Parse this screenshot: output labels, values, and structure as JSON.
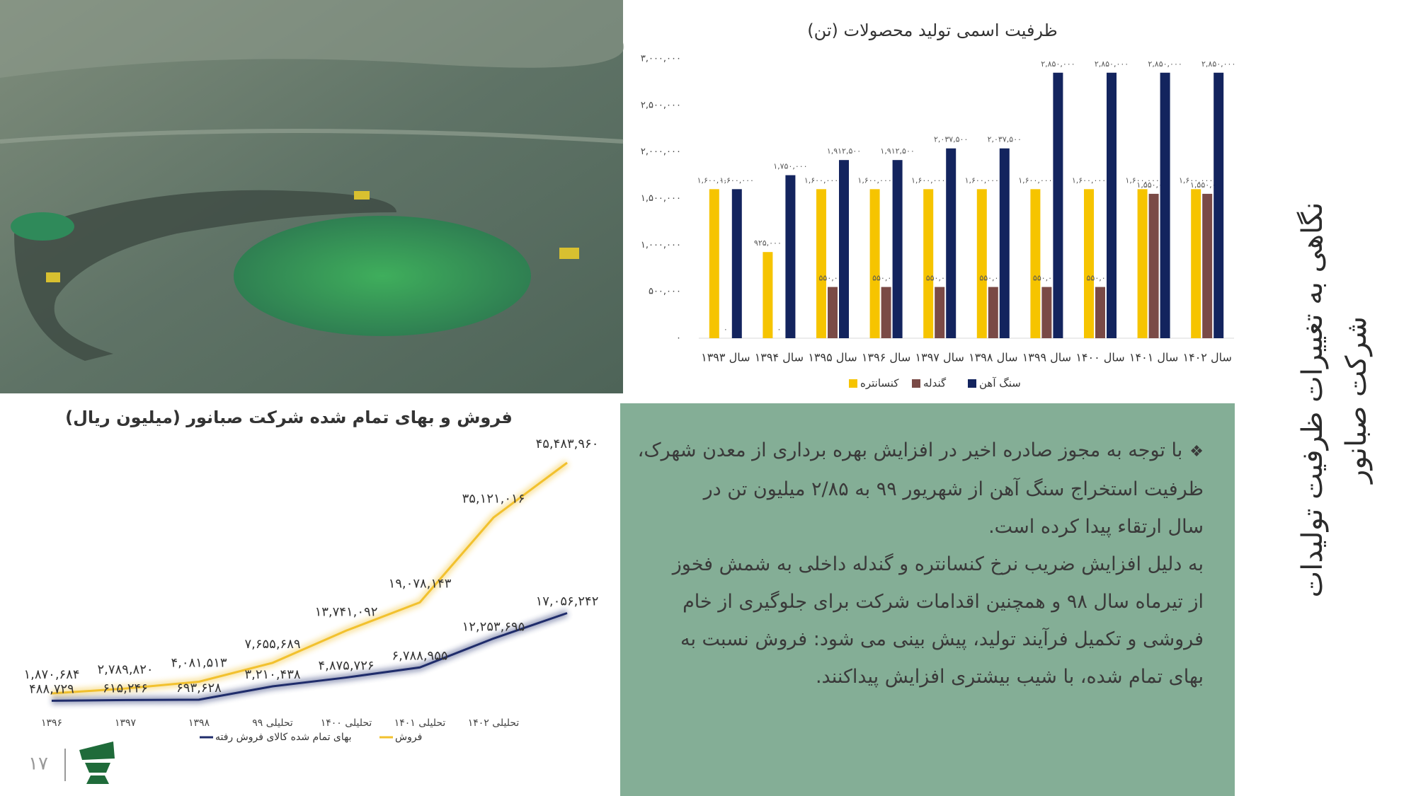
{
  "chart_data": [
    {
      "type": "bar",
      "title": "ظرفیت اسمی تولید محصولات (تن)",
      "categories": [
        "سال ۱۳۹۳",
        "سال ۱۳۹۴",
        "سال ۱۳۹۵",
        "سال ۱۳۹۶",
        "سال ۱۳۹۷",
        "سال ۱۳۹۸",
        "سال ۱۳۹۹",
        "سال ۱۴۰۰",
        "سال ۱۴۰۱",
        "سال ۱۴۰۲"
      ],
      "series": [
        {
          "name": "کنسانتره",
          "color": "#f6c400",
          "values": [
            1600000,
            925000,
            1600000,
            1600000,
            1600000,
            1600000,
            1600000,
            1600000,
            1600000,
            1600000
          ],
          "value_labels": [
            "۱,۶۰۰,۰۰۰",
            "۹۲۵,۰۰۰",
            "۱,۶۰۰,۰۰۰",
            "۱,۶۰۰,۰۰۰",
            "۱,۶۰۰,۰۰۰",
            "۱,۶۰۰,۰۰۰",
            "۱,۶۰۰,۰۰۰",
            "۱,۶۰۰,۰۰۰",
            "۱,۶۰۰,۰۰۰",
            "۱,۶۰۰,۰۰۰"
          ]
        },
        {
          "name": "گندله",
          "color": "#7a4a46",
          "values": [
            0,
            0,
            550000,
            550000,
            550000,
            550000,
            550000,
            550000,
            1550000,
            1550000
          ],
          "value_labels": [
            "۰",
            "۰",
            "۵۵۰,۰۰۰",
            "۵۵۰,۰۰۰",
            "۵۵۰,۰۰۰",
            "۵۵۰,۰۰۰",
            "۵۵۰,۰۰۰",
            "۵۵۰,۰۰۰",
            "۱,۵۵۰,۰۰۰",
            "۱,۵۵۰,۰۰۰"
          ]
        },
        {
          "name": "سنگ آهن",
          "color": "#13245e",
          "values": [
            1600000,
            1750000,
            1912500,
            1912500,
            2037500,
            2037500,
            2850000,
            2850000,
            2850000,
            2850000
          ],
          "value_labels": [
            "۱,۶۰۰,۰۰۰",
            "۱,۷۵۰,۰۰۰",
            "۱,۹۱۲,۵۰۰",
            "۱,۹۱۲,۵۰۰",
            "۲,۰۳۷,۵۰۰",
            "۲,۰۳۷,۵۰۰",
            "۲,۸۵۰,۰۰۰",
            "۲,۸۵۰,۰۰۰",
            "۲,۸۵۰,۰۰۰",
            "۲,۸۵۰,۰۰۰"
          ]
        }
      ],
      "ylim": [
        0,
        3000000
      ],
      "yticks": [
        {
          "value": 0,
          "label": "۰"
        },
        {
          "value": 500000,
          "label": "۵۰۰,۰۰۰"
        },
        {
          "value": 1000000,
          "label": "۱,۰۰۰,۰۰۰"
        },
        {
          "value": 1500000,
          "label": "۱,۵۰۰,۰۰۰"
        },
        {
          "value": 2000000,
          "label": "۲,۰۰۰,۰۰۰"
        },
        {
          "value": 2500000,
          "label": "۲,۵۰۰,۰۰۰"
        },
        {
          "value": 3000000,
          "label": "۳,۰۰۰,۰۰۰"
        }
      ],
      "legend": "bottom"
    },
    {
      "type": "line",
      "title": "فروش و بهای تمام شده شرکت صبانور (میلیون ریال)",
      "categories": [
        "۱۳۹۶",
        "۱۳۹۷",
        "۱۳۹۸",
        "تحلیلی ۹۹",
        "تحلیلی ۱۴۰۰",
        "تحلیلی ۱۴۰۱",
        "تحلیلی ۱۴۰۲",
        null
      ],
      "series": [
        {
          "name": "فروش",
          "color": "#f2c12e",
          "values": [
            1870684,
            2789820,
            4081513,
            7655689,
            13741092,
            19078143,
            35121016,
            45483960
          ],
          "value_labels": [
            "۱,۸۷۰,۶۸۴",
            "۲,۷۸۹,۸۲۰",
            "۴,۰۸۱,۵۱۳",
            "۷,۶۵۵,۶۸۹",
            "۱۳,۷۴۱,۰۹۲",
            "۱۹,۰۷۸,۱۴۳",
            "۳۵,۱۲۱,۰۱۶",
            "۴۵,۴۸۳,۹۶۰"
          ]
        },
        {
          "name": "بهای تمام شده کالای فروش رفته",
          "color": "#1f2c6b",
          "values": [
            488729,
            615246,
            693628,
            3210438,
            4875726,
            6788955,
            12253695,
            17056242
          ],
          "value_labels": [
            "۴۸۸,۷۲۹",
            "۶۱۵,۲۴۶",
            "۶۹۳,۶۲۸",
            "۳,۲۱۰,۴۳۸",
            "۴,۸۷۵,۷۲۶",
            "۶,۷۸۸,۹۵۵",
            "۱۲,۲۵۳,۶۹۵",
            "۱۷,۰۵۶,۲۴۲"
          ]
        }
      ],
      "legend": "bottom"
    }
  ],
  "header": {
    "title_lines": [
      "نگاهی به تغییرات ظرفیت تولیدات",
      "شرکت صبانور"
    ]
  },
  "body": {
    "bullet": "❖",
    "lines": [
      "با توجه به مجوز صادره اخیر در افزایش بهره برداری از معدن شهرک،",
      "ظرفیت استخراج سنگ آهن از شهریور ۹۹ به ۲/۸۵ میلیون تن در",
      "سال ارتقاء پیدا کرده است.",
      "به دلیل افزایش ضریب نرخ کنسانتره و گندله داخلی به شمش فخوز",
      "از تیرماه سال ۹۸ و همچنین اقدامات شرکت برای جلوگیری از خام",
      "فروشی و تکمیل فرآیند تولید، پیش بینی می شود: فروش نسبت به",
      "بهای تمام شده، با شیب بیشتری افزایش پیداکنند."
    ]
  },
  "footer": {
    "page_number": "۱۷"
  }
}
